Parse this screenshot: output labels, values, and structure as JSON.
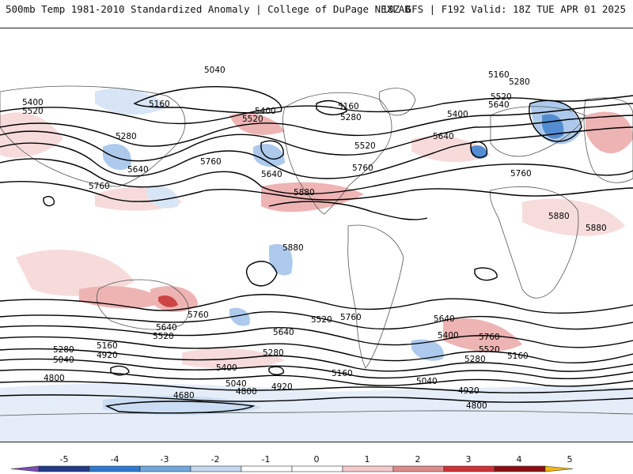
{
  "header": {
    "left": "500mb Temp 1981-2010 Standardized Anomaly | College of DuPage NEXLAB",
    "right": "18Z GFS | F192 Valid: 18Z TUE APR 01 2025"
  },
  "contour_labels": [
    "5040",
    "5160",
    "5280",
    "5400",
    "5520",
    "5640",
    "5760",
    "5880",
    "4920",
    "4800",
    "4680"
  ],
  "colorbar": {
    "ticks": [
      "-5",
      "-4",
      "-3",
      "-2",
      "-1",
      "0",
      "1",
      "2",
      "3",
      "4",
      "5"
    ],
    "colors": [
      "#7b4fb5",
      "#1f3a8a",
      "#2b7bd0",
      "#6fa8e0",
      "#c3d8f0",
      "#ffffff",
      "#ffffff",
      "#f4caca",
      "#e08b8b",
      "#cc3333",
      "#8b0f0f",
      "#f1b90a"
    ]
  },
  "map": {
    "anomaly_colors": {
      "cold_strong": "#4a86cf",
      "cold": "#a9c8ec",
      "cold_light": "#d6e4f5",
      "warm_light": "#f7dada",
      "warm": "#eeb0b0",
      "warm_strong": "#cc3a3a"
    },
    "contour_color": "#000000",
    "coast_color": "#555555"
  }
}
